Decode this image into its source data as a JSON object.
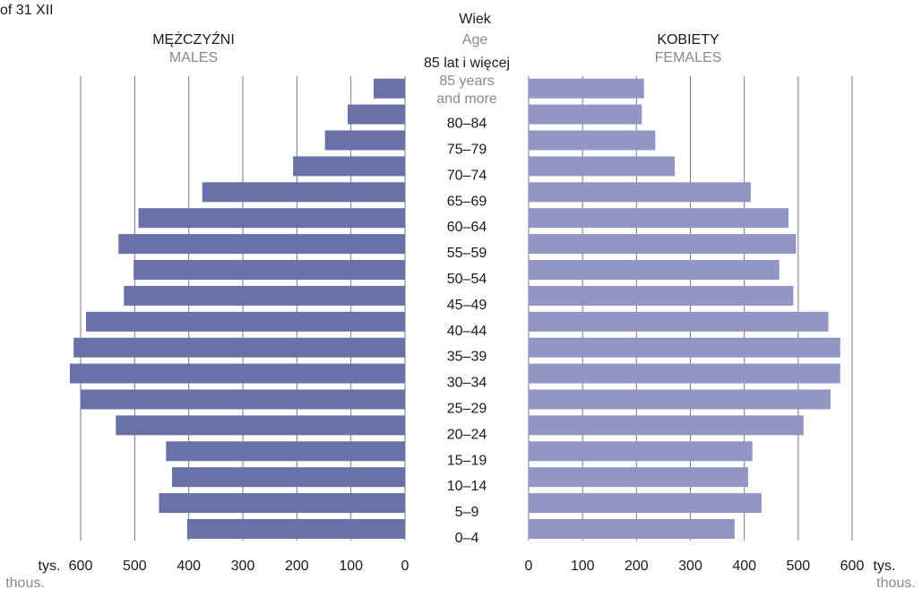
{
  "page": {
    "corner_text": "of 31 XII"
  },
  "chart_data": {
    "type": "bar",
    "title": "",
    "age_header": {
      "pl": "Wiek",
      "en": "Age"
    },
    "categories": [
      "0–4",
      "5–9",
      "10–14",
      "15–19",
      "20–24",
      "25–29",
      "30–34",
      "35–39",
      "40–44",
      "45–49",
      "50–54",
      "55–59",
      "60–64",
      "65–69",
      "70–74",
      "75–79",
      "80–84",
      "85 lat i więcej"
    ],
    "top_category_en": [
      "85 years",
      "and more"
    ],
    "series": [
      {
        "name": "MĘŻCZYŹNI",
        "name_en": "MALES",
        "side": "left",
        "color": "#6a70a8",
        "values": [
          403,
          455,
          431,
          442,
          535,
          600,
          620,
          613,
          590,
          520,
          502,
          530,
          493,
          375,
          207,
          148,
          106,
          58
        ]
      },
      {
        "name": "KOBIETY",
        "name_en": "FEMALES",
        "side": "right",
        "color": "#9196c4",
        "values": [
          382,
          432,
          407,
          415,
          510,
          560,
          578,
          578,
          556,
          491,
          465,
          496,
          482,
          412,
          271,
          235,
          210,
          214
        ]
      }
    ],
    "xlim": [
      0,
      600
    ],
    "x_ticks": [
      0,
      100,
      200,
      300,
      400,
      500,
      600
    ],
    "unit": {
      "pl": "tys.",
      "en": "thous."
    },
    "grid": true
  }
}
